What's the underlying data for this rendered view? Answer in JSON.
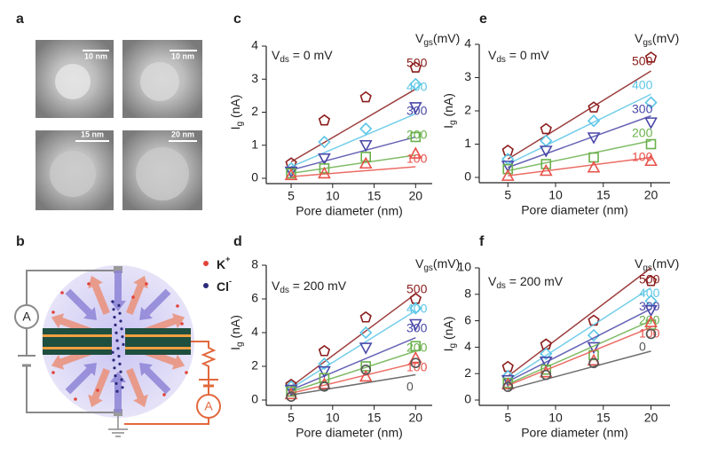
{
  "panels": {
    "a": {
      "label": "a",
      "scale_bars": [
        "10 nm",
        "10 nm",
        "15 nm",
        "20 nm"
      ]
    },
    "b": {
      "label": "b",
      "ammeter_labels": [
        "A",
        "A"
      ],
      "ions": [
        {
          "name": "K",
          "charge": "+"
        },
        {
          "name": "Cl",
          "charge": "-"
        }
      ]
    }
  },
  "chart_data": [
    {
      "type": "scatter",
      "panel_label": "c",
      "x_label": "Pore diameter (nm)",
      "y_label": {
        "text": "I",
        "sub": "g",
        "rest": " (nA)"
      },
      "annotation": {
        "text": "V",
        "sub": "ds",
        "rest": " = 0 mV"
      },
      "legend_title": {
        "text": "V",
        "sub": "gs",
        "rest": "(mV)"
      },
      "x": [
        5,
        9,
        14,
        20
      ],
      "fit_x": [
        5,
        20
      ],
      "xlim": [
        2,
        22
      ],
      "xticks": [
        5,
        10,
        15,
        20
      ],
      "ylim": [
        0,
        4
      ],
      "yticks": [
        0,
        1,
        2,
        3,
        4
      ],
      "series": [
        {
          "name": "500",
          "color": "#8b1c1c",
          "marker": "pentagon",
          "values": [
            0.45,
            1.75,
            2.45,
            3.35
          ],
          "fit": [
            0.5,
            2.7
          ]
        },
        {
          "name": "400",
          "color": "#5cc6e6",
          "marker": "diamond",
          "values": [
            0.3,
            1.1,
            1.5,
            2.85
          ],
          "fit": [
            0.35,
            1.95
          ]
        },
        {
          "name": "300",
          "color": "#4a48a8",
          "marker": "triangle-down",
          "values": [
            0.2,
            0.6,
            1.0,
            2.15
          ],
          "fit": [
            0.25,
            1.25
          ]
        },
        {
          "name": "200",
          "color": "#6ab04c",
          "marker": "square",
          "values": [
            0.15,
            0.3,
            0.65,
            1.25
          ],
          "fit": [
            0.15,
            0.7
          ]
        },
        {
          "name": "100",
          "color": "#e8524a",
          "marker": "triangle-up",
          "values": [
            0.1,
            0.15,
            0.45,
            0.75
          ],
          "fit": [
            0.05,
            0.35
          ]
        }
      ]
    },
    {
      "type": "scatter",
      "panel_label": "d",
      "x_label": "Pore diameter (nm)",
      "y_label": {
        "text": "I",
        "sub": "g",
        "rest": " (nA)"
      },
      "annotation": {
        "text": "V",
        "sub": "ds",
        "rest": " = 200 mV"
      },
      "legend_title": {
        "text": "V",
        "sub": "gs",
        "rest": "(mV)"
      },
      "x": [
        5,
        9,
        14,
        20
      ],
      "fit_x": [
        5,
        20
      ],
      "xlim": [
        2,
        22
      ],
      "xticks": [
        5,
        10,
        15,
        20
      ],
      "ylim": [
        0,
        8
      ],
      "yticks": [
        0,
        2,
        4,
        6,
        8
      ],
      "series": [
        {
          "name": "500",
          "color": "#8b1c1c",
          "marker": "pentagon",
          "values": [
            0.9,
            2.9,
            4.9,
            6.0
          ],
          "fit": [
            0.8,
            6.3
          ]
        },
        {
          "name": "400",
          "color": "#5cc6e6",
          "marker": "diamond",
          "values": [
            0.8,
            2.15,
            4.0,
            5.45
          ],
          "fit": [
            0.7,
            5.3
          ]
        },
        {
          "name": "300",
          "color": "#4a48a8",
          "marker": "triangle-down",
          "values": [
            0.6,
            1.7,
            3.1,
            4.5
          ],
          "fit": [
            0.6,
            3.7
          ]
        },
        {
          "name": "200",
          "color": "#6ab04c",
          "marker": "square",
          "values": [
            0.5,
            1.3,
            2.0,
            3.2
          ],
          "fit": [
            0.5,
            2.9
          ]
        },
        {
          "name": "100",
          "color": "#e8524a",
          "marker": "triangle-up",
          "values": [
            0.35,
            0.95,
            1.4,
            2.5
          ],
          "fit": [
            0.4,
            2.2
          ]
        },
        {
          "name": "0",
          "color": "#555555",
          "marker": "circle",
          "values": [
            0.2,
            0.8,
            1.8,
            2.2
          ],
          "fit": [
            0.3,
            1.5
          ]
        }
      ]
    },
    {
      "type": "scatter",
      "panel_label": "e",
      "x_label": "Pore diameter (nm)",
      "y_label": {
        "text": "I",
        "sub": "g",
        "rest": " (nA)"
      },
      "annotation": {
        "text": "V",
        "sub": "ds",
        "rest": " = 0 mV"
      },
      "legend_title": {
        "text": "V",
        "sub": "gs",
        "rest": "(mV)"
      },
      "x": [
        5,
        9,
        14,
        20
      ],
      "fit_x": [
        5,
        20
      ],
      "xlim": [
        2,
        22
      ],
      "xticks": [
        5,
        10,
        15,
        20
      ],
      "ylim": [
        0,
        4
      ],
      "yticks": [
        0,
        1,
        2,
        3,
        4
      ],
      "series": [
        {
          "name": "500",
          "color": "#8b1c1c",
          "marker": "pentagon",
          "values": [
            0.8,
            1.45,
            2.1,
            3.6
          ],
          "fit": [
            0.55,
            3.2
          ]
        },
        {
          "name": "400",
          "color": "#5cc6e6",
          "marker": "diamond",
          "values": [
            0.55,
            1.1,
            1.7,
            2.25
          ],
          "fit": [
            0.4,
            2.5
          ]
        },
        {
          "name": "300",
          "color": "#4a48a8",
          "marker": "triangle-down",
          "values": [
            0.35,
            0.8,
            1.2,
            1.65
          ],
          "fit": [
            0.3,
            1.85
          ]
        },
        {
          "name": "200",
          "color": "#6ab04c",
          "marker": "square",
          "values": [
            0.25,
            0.4,
            0.6,
            1.0
          ],
          "fit": [
            0.2,
            1.1
          ]
        },
        {
          "name": "100",
          "color": "#e8524a",
          "marker": "triangle-up",
          "values": [
            0.05,
            0.2,
            0.3,
            0.5
          ],
          "fit": [
            0.05,
            0.6
          ]
        }
      ]
    },
    {
      "type": "scatter",
      "panel_label": "f",
      "x_label": "Pore diameter (nm)",
      "y_label": {
        "text": "I",
        "sub": "g",
        "rest": " (nA)"
      },
      "annotation": {
        "text": "V",
        "sub": "ds",
        "rest": " = 200 mV"
      },
      "legend_title": {
        "text": "V",
        "sub": "gs",
        "rest": "(mV)"
      },
      "x": [
        5,
        9,
        14,
        20
      ],
      "fit_x": [
        5,
        20
      ],
      "xlim": [
        2,
        22
      ],
      "xticks": [
        5,
        10,
        15,
        20
      ],
      "ylim": [
        0,
        10
      ],
      "yticks": [
        0,
        2,
        4,
        6,
        8,
        10
      ],
      "series": [
        {
          "name": "500",
          "color": "#8b1c1c",
          "marker": "pentagon",
          "values": [
            2.5,
            4.2,
            6.0,
            9.0
          ],
          "fit": [
            1.8,
            10
          ]
        },
        {
          "name": "400",
          "color": "#5cc6e6",
          "marker": "diamond",
          "values": [
            1.8,
            3.5,
            4.9,
            7.5
          ],
          "fit": [
            1.5,
            8.5
          ]
        },
        {
          "name": "300",
          "color": "#4a48a8",
          "marker": "triangle-down",
          "values": [
            1.5,
            2.9,
            4.0,
            6.8
          ],
          "fit": [
            1.4,
            6.9
          ]
        },
        {
          "name": "200",
          "color": "#6ab04c",
          "marker": "square",
          "values": [
            1.3,
            2.3,
            3.4,
            5.7
          ],
          "fit": [
            1.2,
            6.0
          ]
        },
        {
          "name": "100",
          "color": "#e8524a",
          "marker": "triangle-up",
          "values": [
            1.2,
            2.1,
            3.0,
            5.9
          ],
          "fit": [
            1.1,
            5.5
          ]
        },
        {
          "name": "0",
          "color": "#555555",
          "marker": "circle",
          "values": [
            1.0,
            1.9,
            2.8,
            5.0
          ],
          "fit": [
            0.8,
            3.7
          ]
        }
      ]
    }
  ]
}
